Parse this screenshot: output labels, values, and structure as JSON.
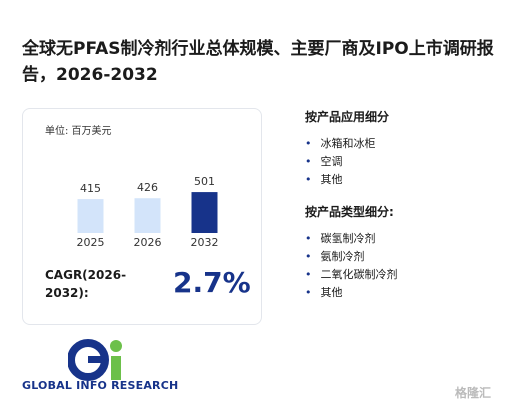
{
  "header": {
    "title": "全球无PFAS制冷剂行业总体规模、主要厂商及IPO上市调研报告，2026-2032"
  },
  "chart_data": {
    "type": "bar",
    "unit": "单位: 百万美元",
    "categories": [
      "2025",
      "2026",
      "2032"
    ],
    "values": [
      415,
      426,
      501
    ],
    "colors": [
      "#d3e4fa",
      "#d3e4fa",
      "#17338a"
    ],
    "ylim": [
      0,
      600
    ]
  },
  "cagr": {
    "label": "CAGR(2026-2032):",
    "value": "2.7%"
  },
  "segments": [
    {
      "title": "按产品应用细分",
      "items": [
        "冰箱和冰柜",
        "空调",
        "其他"
      ]
    },
    {
      "title": "按产品类型细分:",
      "items": [
        "碳氢制冷剂",
        "氨制冷剂",
        "二氧化碳制冷剂",
        "其他"
      ]
    }
  ],
  "brand": {
    "logo": "GLOBAL INFO RESEARCH",
    "badge": "格隆汇"
  }
}
